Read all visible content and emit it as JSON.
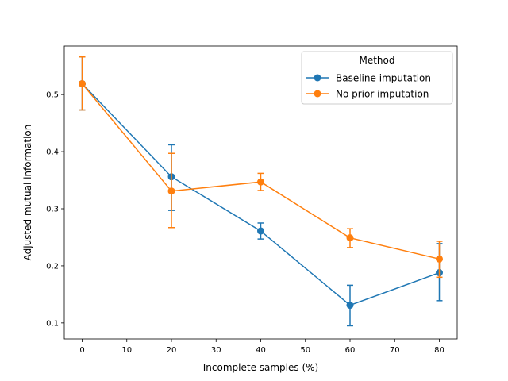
{
  "chart_data": {
    "type": "line",
    "title": "",
    "xlabel": "Incomplete samples (%)",
    "ylabel": "Adjusted mutual information",
    "xlim": [
      -4,
      84
    ],
    "ylim": [
      0.072,
      0.585
    ],
    "xticks": [
      0,
      10,
      20,
      30,
      40,
      50,
      60,
      70,
      80
    ],
    "yticks": [
      0.1,
      0.2,
      0.3,
      0.4,
      0.5
    ],
    "grid": false,
    "legend": {
      "title": "Method",
      "placement": "top-right"
    },
    "x": [
      0,
      20,
      40,
      60,
      80
    ],
    "series": [
      {
        "name": "Baseline imputation",
        "color": "#1f77b4",
        "values": [
          0.519,
          0.356,
          0.261,
          0.131,
          0.188
        ],
        "err_low": [
          0.473,
          0.297,
          0.247,
          0.095,
          0.139
        ],
        "err_high": [
          0.566,
          0.412,
          0.275,
          0.166,
          0.239
        ]
      },
      {
        "name": "No prior imputation",
        "color": "#ff7f0e",
        "values": [
          0.519,
          0.331,
          0.347,
          0.249,
          0.212
        ],
        "err_low": [
          0.473,
          0.267,
          0.332,
          0.232,
          0.18
        ],
        "err_high": [
          0.566,
          0.397,
          0.362,
          0.265,
          0.243
        ]
      }
    ]
  }
}
